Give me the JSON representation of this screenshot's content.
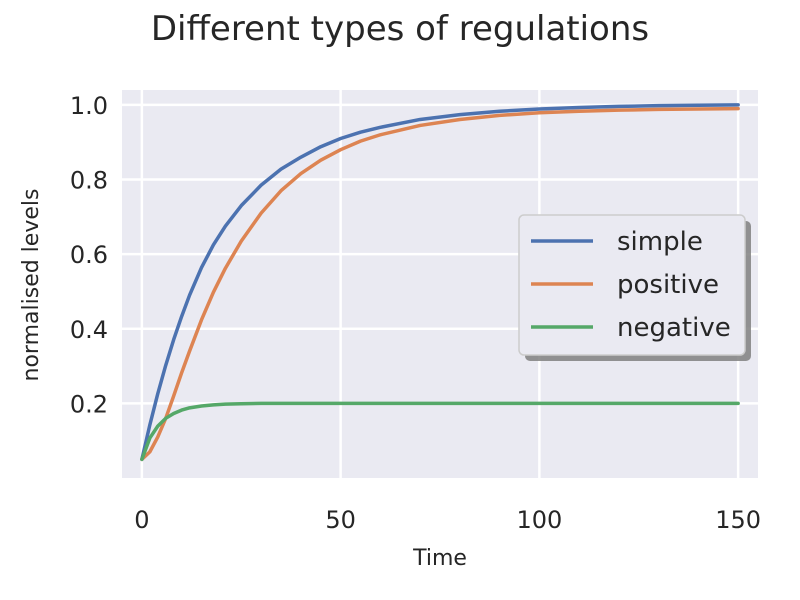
{
  "chart_data": {
    "type": "line",
    "title": "Different types of regulations",
    "xlabel": "Time",
    "ylabel": "normalised levels",
    "xlim": [
      -5,
      155
    ],
    "ylim": [
      0.0,
      1.04
    ],
    "xticks": [
      0,
      50,
      100,
      150
    ],
    "yticks": [
      0.2,
      0.4,
      0.6,
      0.8,
      1.0
    ],
    "ytick_labels": [
      "0.2",
      "0.4",
      "0.6",
      "0.8",
      "1.0"
    ],
    "grid": true,
    "legend_placement": "center-right",
    "series": [
      {
        "name": "simple",
        "color": "#4c72b0",
        "x": [
          0,
          2,
          4,
          6,
          8,
          10,
          12,
          15,
          18,
          21,
          25,
          30,
          35,
          40,
          45,
          50,
          55,
          60,
          70,
          80,
          90,
          100,
          110,
          120,
          130,
          140,
          150
        ],
        "y": [
          0.05,
          0.142,
          0.226,
          0.302,
          0.371,
          0.433,
          0.49,
          0.564,
          0.625,
          0.675,
          0.73,
          0.785,
          0.828,
          0.86,
          0.888,
          0.91,
          0.927,
          0.94,
          0.961,
          0.974,
          0.983,
          0.989,
          0.993,
          0.996,
          0.998,
          0.999,
          1.0
        ]
      },
      {
        "name": "positive",
        "color": "#dd8452",
        "x": [
          0,
          2,
          4,
          6,
          8,
          10,
          12,
          15,
          18,
          21,
          25,
          30,
          35,
          40,
          45,
          50,
          55,
          60,
          70,
          80,
          90,
          100,
          110,
          120,
          130,
          140,
          150
        ],
        "y": [
          0.05,
          0.07,
          0.11,
          0.16,
          0.22,
          0.282,
          0.34,
          0.424,
          0.498,
          0.562,
          0.635,
          0.71,
          0.77,
          0.816,
          0.852,
          0.88,
          0.903,
          0.92,
          0.945,
          0.961,
          0.972,
          0.979,
          0.983,
          0.986,
          0.988,
          0.989,
          0.99
        ]
      },
      {
        "name": "negative",
        "color": "#55a868",
        "x": [
          0,
          2,
          4,
          6,
          8,
          10,
          12,
          15,
          18,
          21,
          25,
          30,
          35,
          40,
          50,
          60,
          70,
          80,
          90,
          100,
          110,
          120,
          130,
          140,
          150
        ],
        "y": [
          0.05,
          0.107,
          0.139,
          0.16,
          0.173,
          0.182,
          0.188,
          0.193,
          0.196,
          0.198,
          0.199,
          0.2,
          0.2,
          0.2,
          0.2,
          0.2,
          0.2,
          0.2,
          0.2,
          0.2,
          0.2,
          0.2,
          0.2,
          0.2,
          0.2
        ]
      }
    ]
  }
}
